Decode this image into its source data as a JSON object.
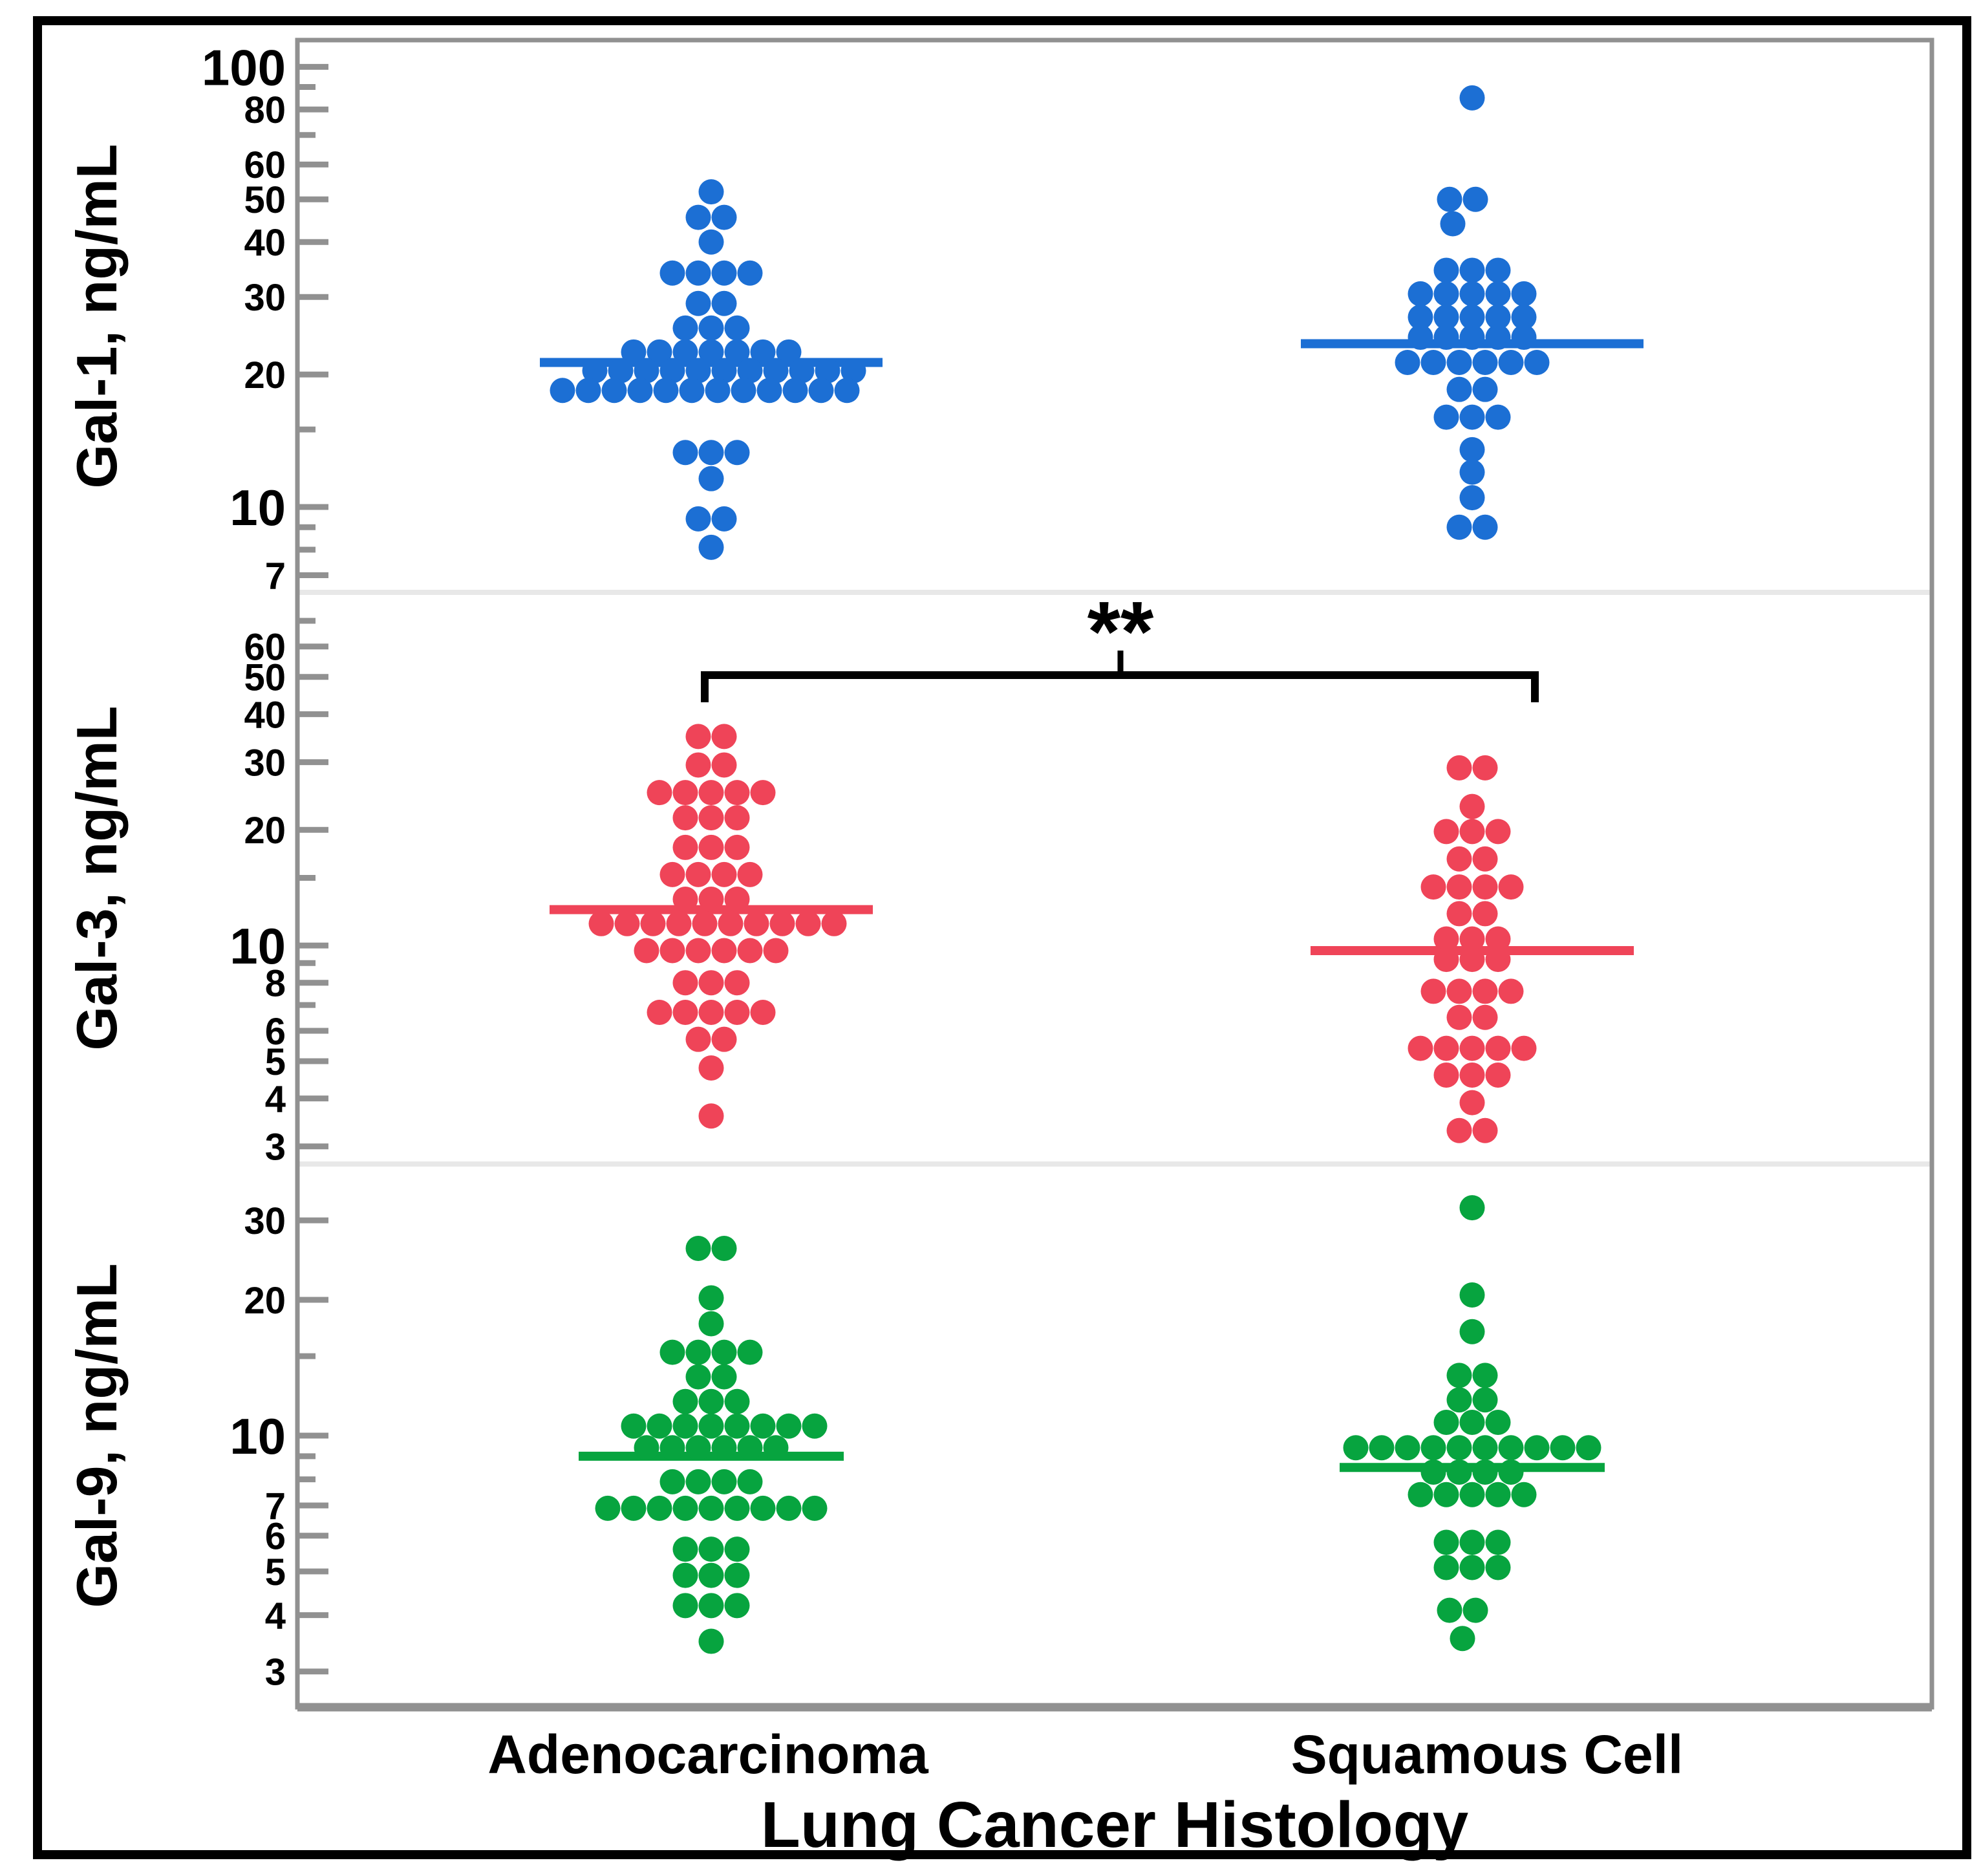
{
  "chart_data": {
    "type": "scatter",
    "variant": "beeswarm-dot-plot",
    "title": "",
    "xlabel": "Lung Cancer Histology",
    "categories": [
      "Adenocarcinoma",
      "Squamous Cell"
    ],
    "significance": {
      "label": "**",
      "panel": "Gal-3, ng/mL",
      "between": [
        "Adenocarcinoma",
        "Squamous Cell"
      ]
    },
    "colors": {
      "frame": "#919191",
      "separator": "#e8e8e8",
      "text": "#000000",
      "background": "#ffffff",
      "gal1": "#1c6fd4",
      "gal3": "#ef4458",
      "gal9": "#07a43f"
    },
    "panels": [
      {
        "ylabel": "Gal-1, ng/mL",
        "color": "#1c6fd4",
        "scale": "log",
        "grid": false,
        "ylim": [
          6.4,
          115
        ],
        "ticks_labeled": [
          100,
          80,
          60,
          50,
          40,
          30,
          20,
          10,
          7
        ],
        "ticks_minor": [
          90,
          70,
          15,
          9,
          8
        ],
        "series": [
          {
            "group": "Adenocarcinoma",
            "n": 50,
            "median": 21.3,
            "rows": [
              [
                52,
                1
              ],
              [
                45.5,
                2
              ],
              [
                40,
                1
              ],
              [
                34,
                4
              ],
              [
                29,
                2
              ],
              [
                25.5,
                3
              ],
              [
                22.5,
                7
              ],
              [
                20.4,
                11,
                20
              ],
              [
                18.4,
                12,
                -10
              ],
              [
                13.3,
                3
              ],
              [
                11.6,
                1
              ],
              [
                9.4,
                2
              ],
              [
                8.1,
                1
              ]
            ]
          },
          {
            "group": "Squamous Cell",
            "n": 38,
            "median": 23.5,
            "rows": [
              [
                85,
                1
              ],
              [
                50,
                2,
                -15
              ],
              [
                44,
                1,
                -30
              ],
              [
                34.5,
                3
              ],
              [
                30.5,
                5
              ],
              [
                27,
                5
              ],
              [
                24.3,
                5
              ],
              [
                21.3,
                6
              ],
              [
                18.5,
                2
              ],
              [
                16,
                3
              ],
              [
                13.5,
                1
              ],
              [
                12,
                1
              ],
              [
                10.5,
                1
              ],
              [
                9,
                2
              ]
            ]
          }
        ]
      },
      {
        "ylabel": "Gal-3, ng/mL",
        "color": "#ef4458",
        "scale": "log",
        "grid": false,
        "ylim": [
          2.7,
          83
        ],
        "ticks_labeled": [
          60,
          50,
          40,
          30,
          20,
          10,
          8,
          6,
          5,
          4,
          3
        ],
        "ticks_minor": [
          70,
          15,
          9,
          7
        ],
        "series": [
          {
            "group": "Adenocarcinoma",
            "n": 50,
            "median": 12.4,
            "rows": [
              [
                35,
                2
              ],
              [
                29.5,
                2
              ],
              [
                25,
                5
              ],
              [
                21.5,
                3
              ],
              [
                18,
                3
              ],
              [
                15.3,
                4
              ],
              [
                13.2,
                3
              ],
              [
                11.4,
                10,
                10
              ],
              [
                9.7,
                6
              ],
              [
                8,
                3
              ],
              [
                6.7,
                5
              ],
              [
                5.7,
                2
              ],
              [
                4.8,
                1
              ],
              [
                3.6,
                1
              ]
            ]
          },
          {
            "group": "Squamous Cell",
            "n": 37,
            "median": 9.7,
            "rows": [
              [
                29,
                2
              ],
              [
                23,
                1
              ],
              [
                19.8,
                3
              ],
              [
                16.8,
                2
              ],
              [
                14.2,
                4
              ],
              [
                12.1,
                2
              ],
              [
                10.4,
                3
              ],
              [
                9.2,
                3
              ],
              [
                7.6,
                4
              ],
              [
                6.5,
                2
              ],
              [
                5.4,
                5
              ],
              [
                4.6,
                3
              ],
              [
                3.9,
                1
              ],
              [
                3.3,
                2
              ]
            ]
          }
        ]
      },
      {
        "ylabel": "Gal-9, ng/mL",
        "color": "#07a43f",
        "scale": "log",
        "grid": false,
        "ylim": [
          2.5,
          40
        ],
        "ticks_labeled": [
          30,
          20,
          10,
          7,
          6,
          5,
          4,
          3
        ],
        "ticks_minor": [
          15,
          9,
          8
        ],
        "series": [
          {
            "group": "Adenocarcinoma",
            "n": 50,
            "median": 9.0,
            "rows": [
              [
                26,
                2
              ],
              [
                20.2,
                1
              ],
              [
                17.7,
                1
              ],
              [
                15.3,
                4
              ],
              [
                13.5,
                2
              ],
              [
                11.9,
                3
              ],
              [
                10.5,
                8,
                20
              ],
              [
                9.4,
                6
              ],
              [
                7.9,
                4
              ],
              [
                6.9,
                9
              ],
              [
                5.6,
                3
              ],
              [
                4.9,
                3
              ],
              [
                4.2,
                3
              ],
              [
                3.5,
                1
              ]
            ]
          },
          {
            "group": "Squamous Cell",
            "n": 38,
            "median": 8.5,
            "rows": [
              [
                32,
                1
              ],
              [
                20.5,
                1
              ],
              [
                17,
                1
              ],
              [
                13.6,
                2
              ],
              [
                12,
                2
              ],
              [
                10.7,
                3
              ],
              [
                9.4,
                10
              ],
              [
                8.3,
                4
              ],
              [
                7.4,
                5
              ],
              [
                5.8,
                3
              ],
              [
                5.1,
                3
              ],
              [
                4.1,
                2,
                -15
              ],
              [
                3.55,
                1,
                -15
              ]
            ]
          }
        ]
      }
    ]
  }
}
